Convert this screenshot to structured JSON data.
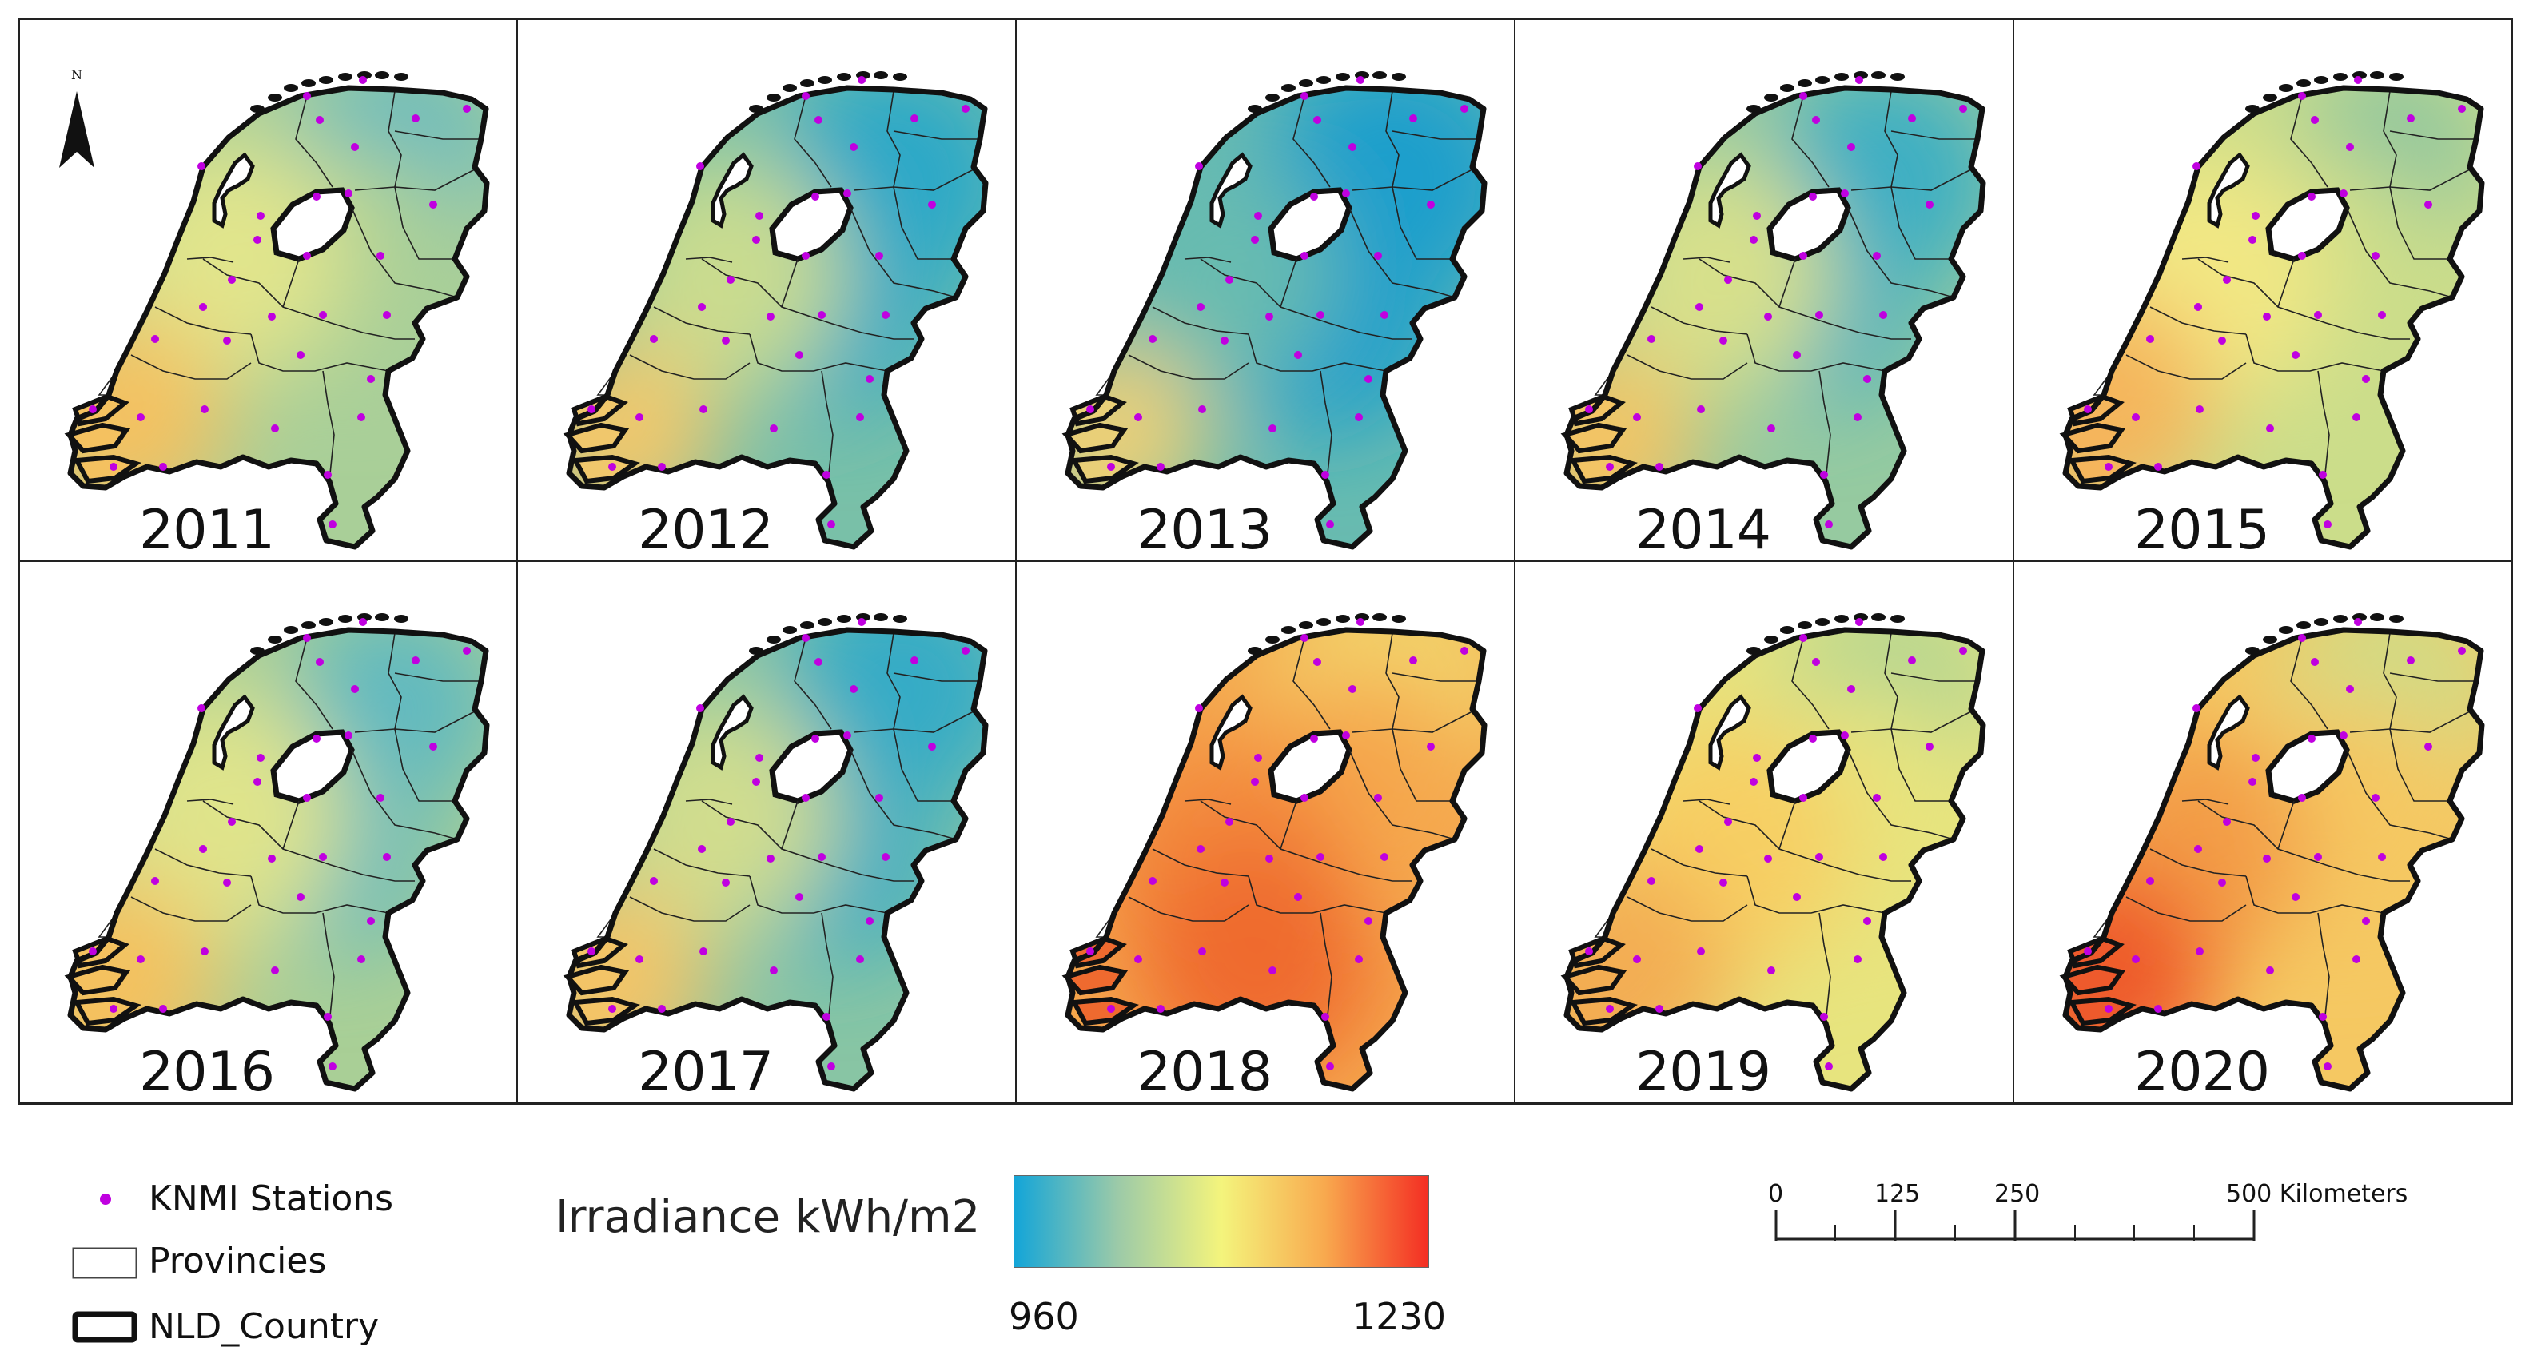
{
  "panels": [
    {
      "year": "2011",
      "palette": [
        "#5fb8c4",
        "#a9cf98",
        "#e1e58c",
        "#f4c160"
      ]
    },
    {
      "year": "2012",
      "palette": [
        "#2aa8c8",
        "#79c0a8",
        "#c9dc8f",
        "#f0c76c"
      ]
    },
    {
      "year": "2013",
      "palette": [
        "#1e9fcc",
        "#68bbb0",
        "#b6d59a",
        "#e9cf78"
      ]
    },
    {
      "year": "2014",
      "palette": [
        "#3aaec4",
        "#96caa0",
        "#d7e08b",
        "#f2c465"
      ]
    },
    {
      "year": "2015",
      "palette": [
        "#8cc5a0",
        "#cbdd8a",
        "#f2e884",
        "#f5b55c"
      ]
    },
    {
      "year": "2016",
      "palette": [
        "#61b9c0",
        "#a9cf96",
        "#dfe48b",
        "#f4c15f"
      ]
    },
    {
      "year": "2017",
      "palette": [
        "#34abc6",
        "#88c5a4",
        "#d0dd8e",
        "#f3c467"
      ]
    },
    {
      "year": "2018",
      "palette": [
        "#f2d46c",
        "#f5a84e",
        "#f38a3d",
        "#ef6a2f"
      ]
    },
    {
      "year": "2019",
      "palette": [
        "#b4d592",
        "#e7e47e",
        "#f7cf63",
        "#f3ad52"
      ]
    },
    {
      "year": "2020",
      "palette": [
        "#cfdc87",
        "#f5c862",
        "#f39d46",
        "#ee5a2c"
      ]
    }
  ],
  "north_arrow": {
    "label": "N"
  },
  "legend": {
    "stations": "KNMI Stations",
    "provinces": "Provincies",
    "country": "NLD_Country",
    "station_color": "#c000e0"
  },
  "colorbar": {
    "title": "Irradiance kWh/m2",
    "min": "960",
    "max": "1230",
    "colors": [
      "#13a5d8",
      "#9ccaa8",
      "#f4f47c",
      "#f8a94e",
      "#f42e23"
    ]
  },
  "scalebar": {
    "labels": [
      "0",
      "125",
      "250",
      "500 Kilometers"
    ]
  }
}
